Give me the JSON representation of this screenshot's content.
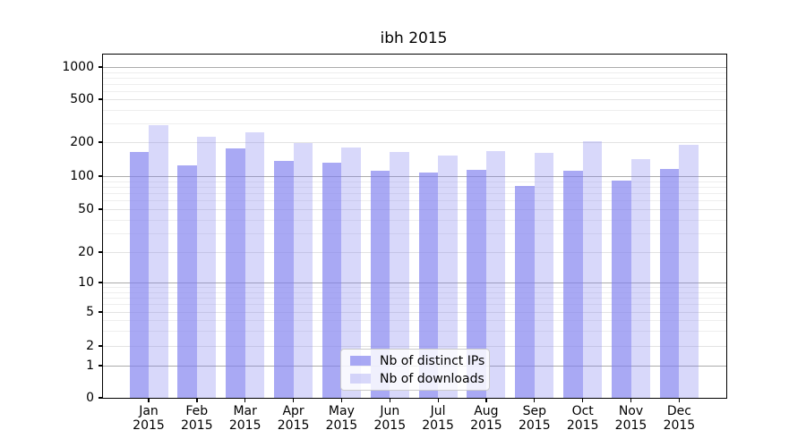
{
  "chart_data": {
    "type": "bar",
    "title": "ibh 2015",
    "categories": [
      "Jan",
      "Feb",
      "Mar",
      "Apr",
      "May",
      "Jun",
      "Jul",
      "Aug",
      "Sep",
      "Oct",
      "Nov",
      "Dec"
    ],
    "category_year": "2015",
    "series": [
      {
        "name": "Nb of distinct IPs",
        "color": "rgba(127,127,238,0.67)",
        "values": [
          165,
          125,
          175,
          136,
          132,
          112,
          107,
          114,
          82,
          111,
          92,
          116
        ]
      },
      {
        "name": "Nb of downloads",
        "color": "rgba(127,127,238,0.30)",
        "values": [
          288,
          225,
          248,
          195,
          180,
          163,
          151,
          168,
          160,
          204,
          141,
          189
        ]
      }
    ],
    "y_ticks": [
      0,
      1,
      2,
      5,
      10,
      20,
      50,
      100,
      200,
      500,
      1000
    ],
    "y_scale": "symlog",
    "ylim": [
      0,
      1000
    ],
    "grid": true,
    "legend_position": "lower center",
    "decade_ticks": [
      1,
      10,
      100,
      1000
    ]
  }
}
